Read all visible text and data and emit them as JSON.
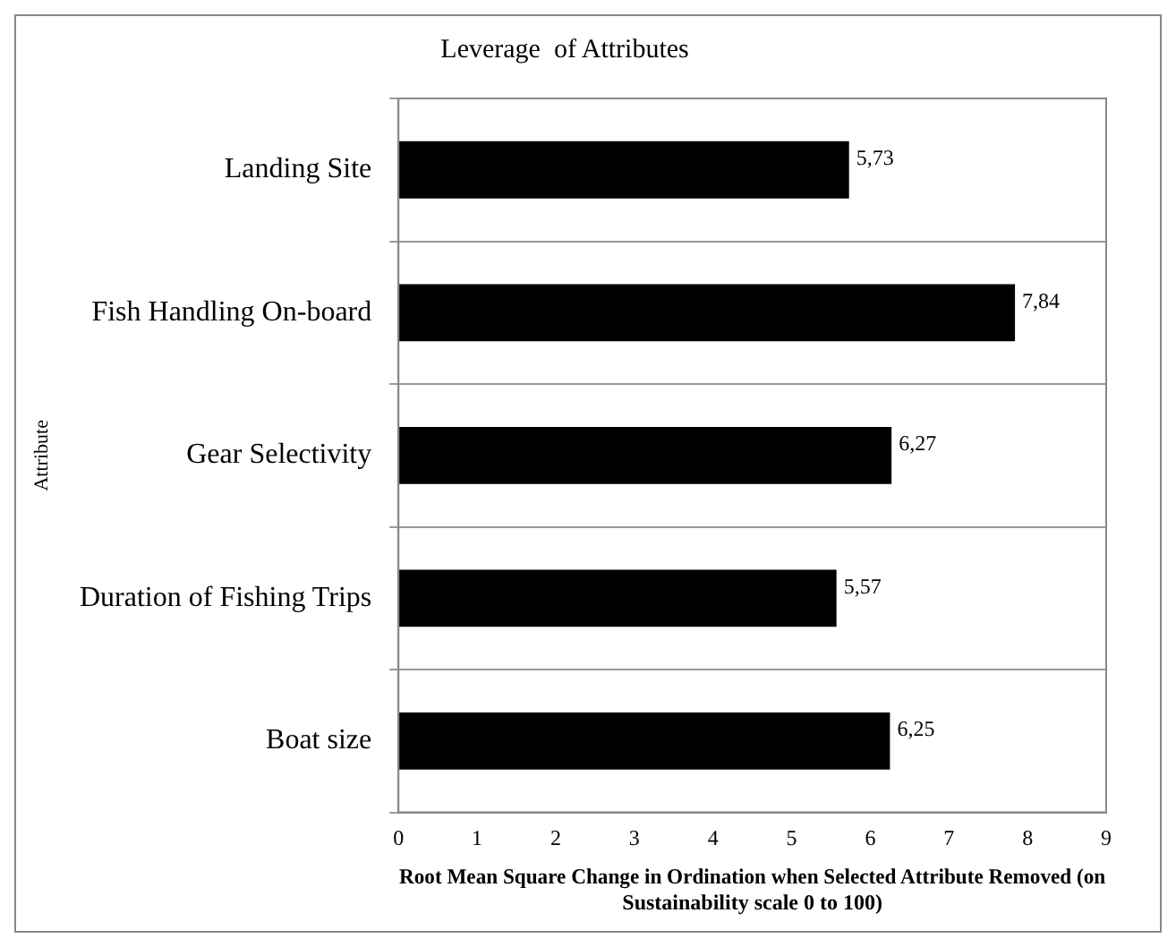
{
  "chart_data": {
    "type": "bar",
    "orientation": "horizontal",
    "title": "Leverage  of Attributes",
    "xlabel": "Root Mean Square Change in Ordination when Selected Attribute Removed (on Sustainability scale 0 to 100)",
    "ylabel": "Attribute",
    "categories": [
      "Landing Site",
      "Fish Handling On-board",
      "Gear Selectivity",
      "Duration of Fishing Trips",
      "Boat size"
    ],
    "values": [
      5.73,
      7.84,
      6.27,
      5.57,
      6.25
    ],
    "value_labels": [
      "5,73",
      "7,84",
      "6,27",
      "5,57",
      "6,25"
    ],
    "color": "#000000",
    "xlim": [
      0,
      9
    ],
    "xticks": [
      0,
      1,
      2,
      3,
      4,
      5,
      6,
      7,
      8,
      9
    ],
    "grid": "y",
    "legend": false
  }
}
